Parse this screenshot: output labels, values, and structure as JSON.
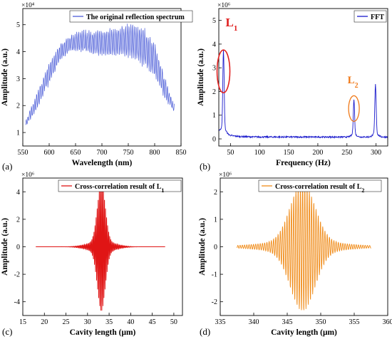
{
  "chart_data": [
    {
      "panel": "(a)",
      "type": "line",
      "xlabel": "Wavelength (nm)",
      "ylabel": "Amplitude (a.u.)",
      "multiplier": "×10⁴",
      "legend": "The original reflection spectrum",
      "color": "#4d5ed8",
      "xlim": [
        550,
        850
      ],
      "ylim": [
        0.5,
        5.6
      ],
      "xticks": [
        550,
        600,
        650,
        700,
        750,
        800,
        850
      ],
      "yticks": [
        1,
        2,
        3,
        4,
        5
      ],
      "envelope_x": [
        555,
        575,
        600,
        620,
        640,
        660,
        680,
        700,
        720,
        740,
        760,
        780,
        800,
        820,
        838
      ],
      "envelope_lower": [
        1.2,
        1.8,
        2.8,
        3.6,
        4.0,
        4.0,
        3.9,
        3.8,
        3.8,
        3.8,
        3.7,
        3.4,
        3.0,
        2.2,
        1.7
      ],
      "envelope_upper": [
        1.4,
        2.4,
        3.6,
        4.3,
        4.6,
        4.8,
        4.8,
        4.8,
        4.9,
        5.0,
        5.1,
        4.9,
        4.4,
        3.0,
        2.0
      ]
    },
    {
      "panel": "(b)",
      "type": "line",
      "xlabel": "Frequency (Hz)",
      "ylabel": "Amplitude (a.u.)",
      "multiplier": "×10⁶",
      "legend": "FFT",
      "color": "#1a1acc",
      "xlim": [
        30,
        320
      ],
      "ylim": [
        -0.3,
        5.5
      ],
      "xticks": [
        50,
        100,
        150,
        200,
        250,
        300
      ],
      "yticks": [
        0,
        1,
        2,
        3,
        4,
        5
      ],
      "peaks": [
        {
          "x": 38,
          "y": 3.25
        },
        {
          "x": 262,
          "y": 1.45
        },
        {
          "x": 299,
          "y": 2.05
        }
      ],
      "annotations": [
        {
          "text": "L",
          "sub": "1",
          "color": "#e02020",
          "x": 38
        },
        {
          "text": "L",
          "sub": "2",
          "color": "#f07a1a",
          "x": 262
        }
      ]
    },
    {
      "panel": "(c)",
      "type": "line",
      "xlabel": "Cavity length (μm)",
      "ylabel": "Amplitude (a.u.)",
      "multiplier": "×10⁶",
      "legend": "Cross-correlation result of L",
      "legend_sub": "1",
      "color": "#e01515",
      "xlim": [
        15,
        52
      ],
      "ylim": [
        -5,
        5
      ],
      "xticks": [
        15,
        20,
        25,
        30,
        35,
        40,
        45,
        50
      ],
      "yticks": [
        -4,
        -2,
        0,
        2,
        4
      ],
      "signal_range": [
        18,
        48
      ],
      "center": 33.2,
      "peak_amplitude": 4.3
    },
    {
      "panel": "(d)",
      "type": "line",
      "xlabel": "Cavity length (μm)",
      "ylabel": "Amplitude (a.u.)",
      "multiplier": "×10⁶",
      "legend": "Cross-correlation result of L",
      "legend_sub": "2",
      "color": "#f08c1a",
      "xlim": [
        335,
        360
      ],
      "ylim": [
        -2.5,
        2.5
      ],
      "xticks": [
        335,
        340,
        345,
        350,
        355,
        360
      ],
      "yticks": [
        -2,
        -1,
        0,
        1,
        2
      ],
      "signal_range": [
        337.5,
        357.5
      ],
      "center": 347.3,
      "peak_amplitude": 2.15
    }
  ]
}
